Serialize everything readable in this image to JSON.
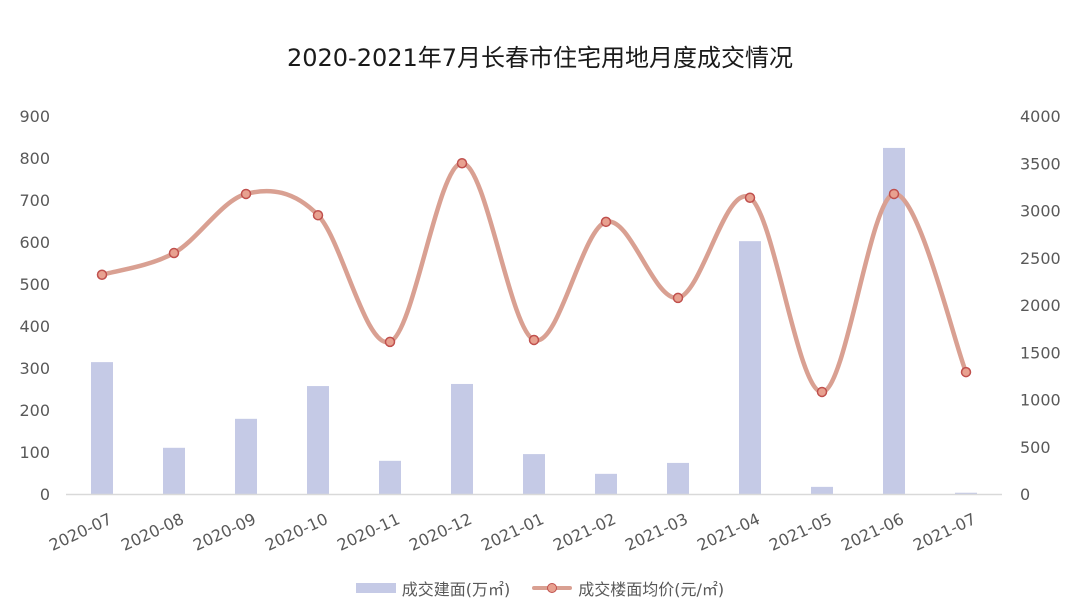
{
  "title": "2020-2021年7月长春市住宅用地月度成交情况",
  "legend": {
    "bar_label": "成交建面(万㎡)",
    "line_label": "成交楼面均价(元/㎡)"
  },
  "colors": {
    "bar": "#c5cae6",
    "line": "#d9a092",
    "marker_fill": "#e8a190",
    "marker_stroke": "#c0504d",
    "axis": "#d9d9d9",
    "tick_text": "#595959"
  },
  "chart_data": {
    "type": "bar+line",
    "title": "2020-2021年7月长春市住宅用地月度成交情况",
    "categories": [
      "2020-07",
      "2020-08",
      "2020-09",
      "2020-10",
      "2020-11",
      "2020-12",
      "2021-01",
      "2021-02",
      "2021-03",
      "2021-04",
      "2021-05",
      "2021-06",
      "2021-07"
    ],
    "series": [
      {
        "name": "成交建面(万㎡)",
        "type": "bar",
        "axis": "left",
        "values": [
          314,
          110,
          179,
          257,
          79,
          262,
          95,
          48,
          74,
          602,
          17,
          824,
          3
        ]
      },
      {
        "name": "成交楼面均价(元/㎡)",
        "type": "line",
        "smooth": true,
        "axis": "right",
        "values": [
          2320,
          2550,
          3175,
          2950,
          1610,
          3500,
          1630,
          2880,
          2075,
          3135,
          1080,
          3175,
          1290
        ]
      }
    ],
    "y_left": {
      "min": 0,
      "max": 900,
      "step": 100,
      "ticks": [
        "0",
        "100",
        "200",
        "300",
        "400",
        "500",
        "600",
        "700",
        "800",
        "900"
      ]
    },
    "y_right": {
      "min": 0,
      "max": 4000,
      "step": 500,
      "ticks": [
        "0",
        "500",
        "1000",
        "1500",
        "2000",
        "2500",
        "3000",
        "3500",
        "4000"
      ]
    },
    "grid": false,
    "legend_position": "bottom"
  }
}
